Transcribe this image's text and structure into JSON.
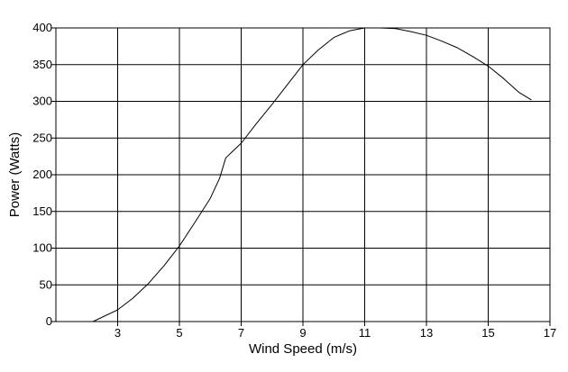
{
  "chart_data": {
    "type": "line",
    "title": "",
    "xlabel": "Wind Speed (m/s)",
    "ylabel": "Power (Watts)",
    "xlim": [
      1,
      17
    ],
    "ylim": [
      0,
      400
    ],
    "x_ticks": [
      3,
      5,
      7,
      9,
      11,
      13,
      15,
      17
    ],
    "y_ticks": [
      0,
      50,
      100,
      150,
      200,
      250,
      300,
      350,
      400
    ],
    "grid": true,
    "legend": "none",
    "series": [
      {
        "color": "#000000",
        "x": [
          2.2,
          3.0,
          3.5,
          4.0,
          4.5,
          5.0,
          5.5,
          6.0,
          6.3,
          6.5,
          7.0,
          7.5,
          8.0,
          8.5,
          9.0,
          9.5,
          10.0,
          10.5,
          11.0,
          11.5,
          12.0,
          12.5,
          13.0,
          13.5,
          14.0,
          14.5,
          15.0,
          15.5,
          16.0,
          16.4
        ],
        "y": [
          0,
          16,
          32,
          52,
          76,
          103,
          135,
          168,
          195,
          223,
          243,
          270,
          296,
          323,
          350,
          370,
          387,
          396,
          400,
          400,
          399,
          395,
          390,
          382,
          373,
          361,
          348,
          331,
          312,
          302
        ]
      }
    ]
  }
}
